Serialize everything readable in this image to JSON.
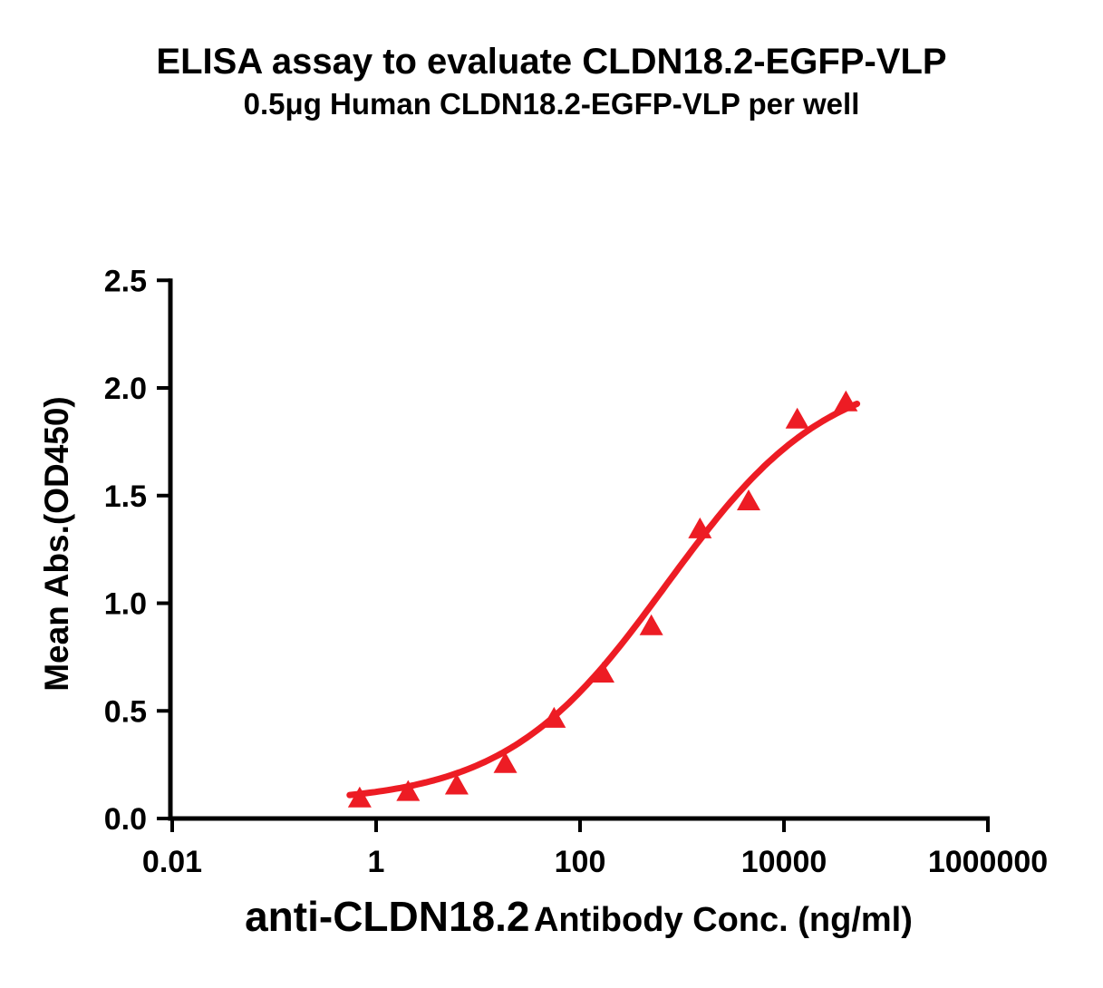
{
  "chart_data": {
    "type": "scatter",
    "title": "ELISA assay to evaluate CLDN18.2-EGFP-VLP",
    "subtitle": "0.5μg Human CLDN18.2-EGFP-VLP per well",
    "ylabel": "Mean Abs.(OD450)",
    "xlabel_emphasis": "anti-CLDN18.2",
    "xlabel_rest": " Antibody Conc. (ng/ml)",
    "x_scale": "log10",
    "xlim": [
      0.01,
      1000000
    ],
    "ylim": [
      0.0,
      2.5
    ],
    "grid": false,
    "legend": false,
    "x_ticks": {
      "values": [
        0.01,
        1,
        100,
        10000,
        1000000
      ],
      "labels": [
        "0.01",
        "1",
        "100",
        "10000",
        "1000000"
      ]
    },
    "y_ticks": {
      "values": [
        0.0,
        0.5,
        1.0,
        1.5,
        2.0,
        2.5
      ],
      "labels": [
        "0.0",
        "0.5",
        "1.0",
        "1.5",
        "2.0",
        "2.5"
      ]
    },
    "series": [
      {
        "marker": "triangle-up",
        "color": "#ED1C24",
        "x": [
          0.69,
          2.06,
          6.17,
          18.5,
          55.6,
          166.7,
          500,
          1500,
          4500,
          13500,
          40500
        ],
        "y": [
          0.1,
          0.13,
          0.16,
          0.26,
          0.47,
          0.68,
          0.9,
          1.35,
          1.48,
          1.86,
          1.94
        ]
      }
    ],
    "curve_fit": {
      "model": "4PL",
      "bottom": 0.07,
      "top": 2.1,
      "ec50": 700,
      "hill": 0.55,
      "x_range": [
        0.55,
        52000
      ]
    },
    "colors": {
      "series": "#ED1C24",
      "axis": "#000000",
      "text": "#000000"
    }
  }
}
